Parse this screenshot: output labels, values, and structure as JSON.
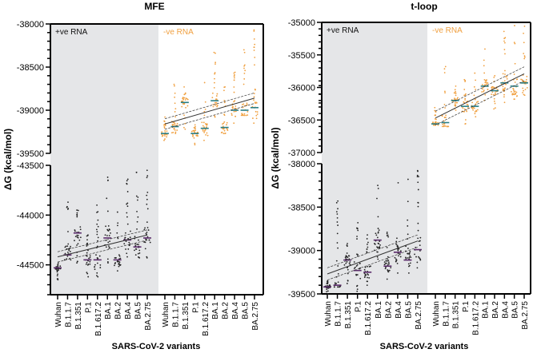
{
  "chart_data": [
    {
      "type": "scatter",
      "title": "MFE",
      "xlabel": "SARS-CoV-2 variants",
      "ylabel": "ΔG (kcal/mol)",
      "categories": [
        "Wuhan",
        "B.1.1.7",
        "B.1.351",
        "P.1",
        "B.1.617.2",
        "BA.1",
        "BA.2",
        "BA.4",
        "BA.5",
        "BA.2.75"
      ],
      "y_segments": [
        {
          "range": [
            -38000,
            -39500
          ],
          "ticks": [
            -38000,
            -38500,
            -39000,
            -39500
          ],
          "tick_labels": [
            "-38000",
            "-38500",
            "-39000",
            "-39500"
          ]
        },
        {
          "range": [
            -43500,
            -44800
          ],
          "ticks": [
            -43500,
            -44000,
            -44500
          ],
          "tick_labels": [
            "-43500",
            "-44000",
            "-44500"
          ]
        }
      ],
      "groups": [
        {
          "name": "+ve RNA",
          "color": "#222222",
          "median_color": "#5a2a6a",
          "medians": [
            -44530,
            -44400,
            -44180,
            -44450,
            -44450,
            -44230,
            -44450,
            -44250,
            -44320,
            -44230
          ],
          "ranges": [
            [
              -44650,
              -44480
            ],
            [
              -44450,
              -43870
            ],
            [
              -44480,
              -43950
            ],
            [
              -44620,
              -44200
            ],
            [
              -44620,
              -43900
            ],
            [
              -44480,
              -43620
            ],
            [
              -44560,
              -43970
            ],
            [
              -44420,
              -43640
            ],
            [
              -44430,
              -43570
            ],
            [
              -44430,
              -43550
            ]
          ],
          "regression": [
            -44420,
            -44200
          ]
        },
        {
          "name": "-ve RNA",
          "color": "#f0a040",
          "median_color": "#2a7f86",
          "medians": [
            -39270,
            -39190,
            -38910,
            -39270,
            -39210,
            -38890,
            -39200,
            -39000,
            -39000,
            -38970
          ],
          "ranges": [
            [
              -39350,
              -39080
            ],
            [
              -39270,
              -38700
            ],
            [
              -39220,
              -38730
            ],
            [
              -39400,
              -39170
            ],
            [
              -39350,
              -38680
            ],
            [
              -39080,
              -38330
            ],
            [
              -39270,
              -38730
            ],
            [
              -39150,
              -38560
            ],
            [
              -39060,
              -38300
            ],
            [
              -39150,
              -38070
            ]
          ],
          "regression": [
            -39160,
            -38860
          ]
        }
      ]
    },
    {
      "type": "scatter",
      "title": "t-loop",
      "xlabel": "SARS-CoV-2 variants",
      "ylabel": "ΔG (kcal/mol)",
      "categories": [
        "Wuhan",
        "B.1.1.7",
        "B.1.351",
        "P.1",
        "B.1.617.2",
        "BA.1",
        "BA.2",
        "BA.4",
        "BA.5",
        "BA.2.75"
      ],
      "y_segments": [
        {
          "range": [
            -35000,
            -37000
          ],
          "ticks": [
            -35000,
            -35500,
            -36000,
            -36500,
            -37000
          ],
          "tick_labels": [
            "-35000",
            "-35500",
            "-36000",
            "-36500",
            "-37000"
          ]
        },
        {
          "range": [
            -38000,
            -39500
          ],
          "ticks": [
            -38000,
            -38500,
            -39000,
            -39500
          ],
          "tick_labels": [
            "-38000",
            "-38500",
            "-39000",
            "-39500"
          ]
        }
      ],
      "groups": [
        {
          "name": "+ve RNA",
          "color": "#222222",
          "median_color": "#5a2a6a",
          "medians": [
            -39420,
            -39400,
            -39110,
            -39230,
            -39250,
            -38880,
            -39180,
            -39020,
            -39110,
            -38990
          ],
          "ranges": [
            [
              -39500,
              -39350
            ],
            [
              -39420,
              -38430
            ],
            [
              -39380,
              -38920
            ],
            [
              -39470,
              -38680
            ],
            [
              -39400,
              -38820
            ],
            [
              -39100,
              -38250
            ],
            [
              -39330,
              -38790
            ],
            [
              -39260,
              -38220
            ],
            [
              -39260,
              -38180
            ],
            [
              -39200,
              -38080
            ]
          ],
          "regression": [
            -39270,
            -38890
          ]
        },
        {
          "name": "-ve RNA",
          "color": "#f0a040",
          "median_color": "#2a7f86",
          "medians": [
            -36560,
            -36540,
            -36200,
            -36290,
            -36290,
            -35980,
            -36050,
            -35930,
            -35980,
            -35930
          ],
          "ranges": [
            [
              -36580,
              -36310
            ],
            [
              -36600,
              -35680
            ],
            [
              -36350,
              -35980
            ],
            [
              -36560,
              -35880
            ],
            [
              -36450,
              -35780
            ],
            [
              -36200,
              -35410
            ],
            [
              -36330,
              -35820
            ],
            [
              -36230,
              -35140
            ],
            [
              -36180,
              -35050
            ],
            [
              -36120,
              -35060
            ]
          ],
          "regression": [
            -36470,
            -35790
          ]
        }
      ]
    }
  ]
}
